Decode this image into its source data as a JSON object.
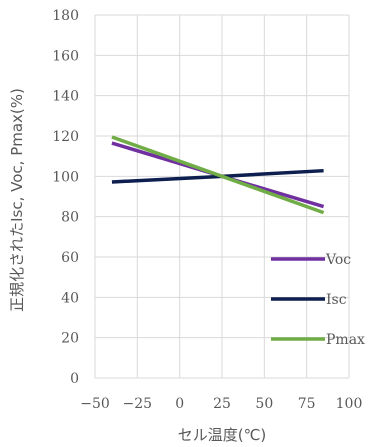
{
  "chart_data": {
    "type": "line",
    "title": "",
    "xlabel": "セル温度(℃)",
    "ylabel": "正規化されたIsc, Voc, Pmax(%)",
    "xlim": [
      -50,
      100
    ],
    "ylim": [
      0,
      180
    ],
    "xticks": [
      -50,
      -25,
      0,
      25,
      50,
      75,
      100
    ],
    "yticks": [
      0,
      20,
      40,
      60,
      80,
      100,
      120,
      140,
      160,
      180
    ],
    "grid": true,
    "legend_position": "right",
    "series": [
      {
        "name": "Voc",
        "color": "#7030a0",
        "x": [
          -40,
          25,
          85
        ],
        "y": [
          116.5,
          100,
          85
        ]
      },
      {
        "name": "Isc",
        "color": "#0d1f4f",
        "x": [
          -40,
          25,
          85
        ],
        "y": [
          97.2,
          100,
          102.8
        ]
      },
      {
        "name": "Pmax",
        "color": "#70ad47",
        "x": [
          -40,
          25,
          85
        ],
        "y": [
          119.5,
          100,
          82
        ]
      }
    ]
  }
}
